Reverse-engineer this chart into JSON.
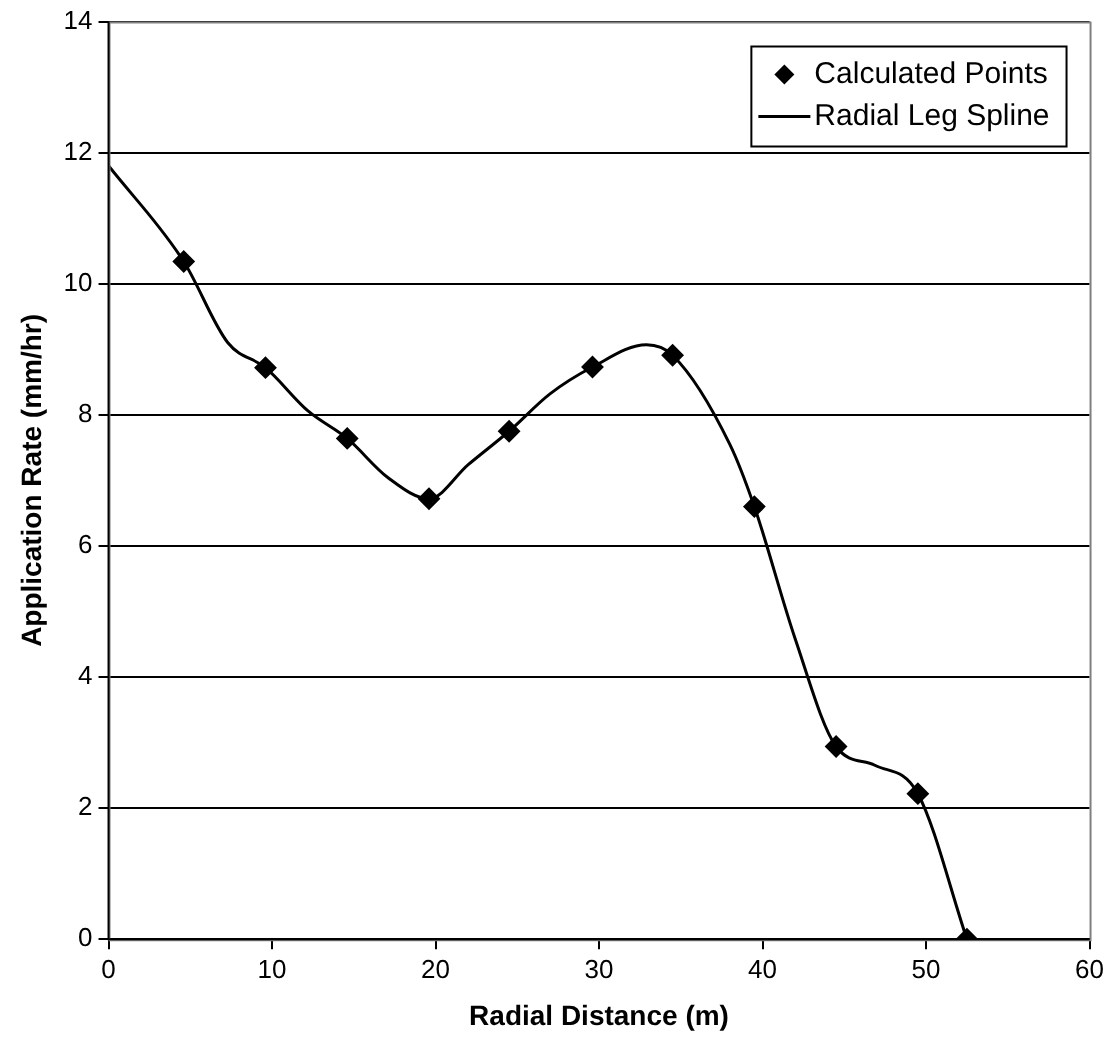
{
  "chart_data": {
    "type": "scatter",
    "xlabel": "Radial Distance (m)",
    "ylabel": "Application Rate (mm/hr)",
    "xlim": [
      0,
      60
    ],
    "xticks": [
      0,
      10,
      20,
      30,
      40,
      50,
      60
    ],
    "ylim": [
      0,
      14
    ],
    "yticks": [
      0,
      2,
      4,
      6,
      8,
      10,
      12,
      14
    ],
    "grid": "y",
    "legend": "top right",
    "series": [
      {
        "name": "Calculated Points",
        "type": "scatter",
        "marker": "diamond",
        "color": "#000000",
        "x": [
          4.6,
          9.6,
          14.6,
          19.6,
          24.5,
          29.6,
          34.5,
          39.5,
          44.5,
          49.5,
          52.5
        ],
        "values": [
          10.34,
          8.72,
          7.64,
          6.72,
          7.75,
          8.73,
          8.91,
          6.6,
          2.94,
          2.22,
          0
        ]
      },
      {
        "name": "Radial Leg Spline",
        "type": "line",
        "marker": "none",
        "line_style": "solid",
        "color": "#000000",
        "x": [
          0,
          4.6,
          7.3,
          9.6,
          12.2,
          14.6,
          17.1,
          19.6,
          22.0,
          24.5,
          27.0,
          29.6,
          32.9,
          34.5,
          38.0,
          39.5,
          42.0,
          44.5,
          46.9,
          49.5,
          52.5
        ],
        "values": [
          11.8,
          10.34,
          9.1,
          8.72,
          8.06,
          7.64,
          7.04,
          6.72,
          7.24,
          7.75,
          8.32,
          8.73,
          9.07,
          8.91,
          7.55,
          6.6,
          4.58,
          2.94,
          2.65,
          2.22,
          0
        ]
      }
    ]
  }
}
